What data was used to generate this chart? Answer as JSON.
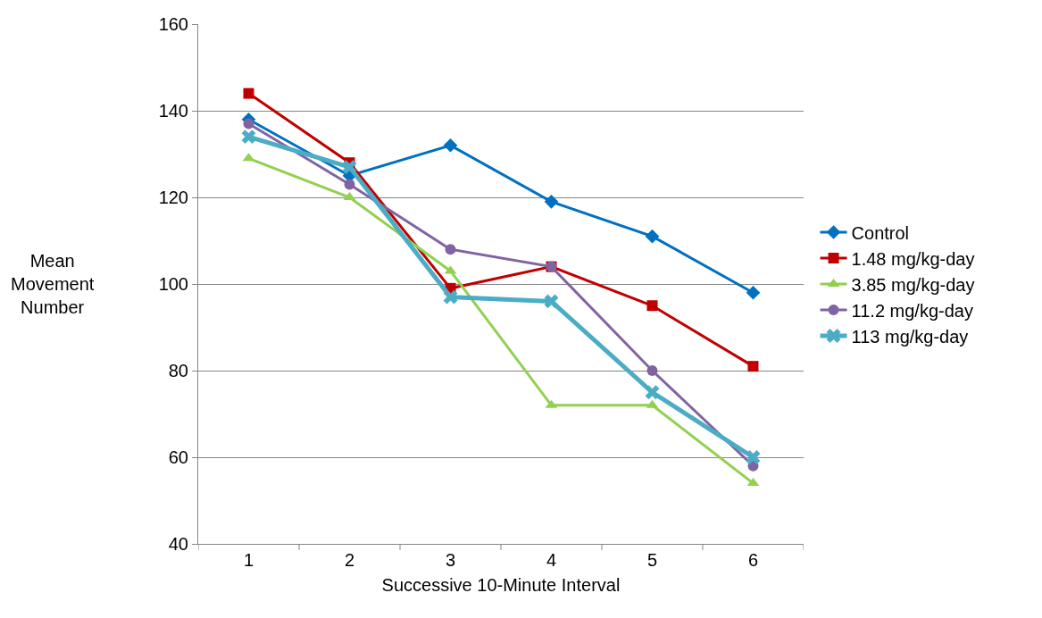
{
  "chart_data": {
    "type": "line",
    "xlabel": "Successive 10-Minute Interval",
    "ylabel": "Mean Movement Number",
    "categories": [
      "1",
      "2",
      "3",
      "4",
      "5",
      "6"
    ],
    "series": [
      {
        "name": "Control",
        "color": "#0070c0",
        "marker": "diamond",
        "values": [
          138,
          125,
          132,
          119,
          111,
          98
        ]
      },
      {
        "name": "1.48 mg/kg-day",
        "color": "#c00000",
        "marker": "square",
        "values": [
          144,
          128,
          99,
          104,
          95,
          81
        ]
      },
      {
        "name": "3.85 mg/kg-day",
        "color": "#92d050",
        "marker": "triangle",
        "values": [
          129,
          120,
          103,
          72,
          72,
          54
        ]
      },
      {
        "name": "11.2 mg/kg-day",
        "color": "#8064a2",
        "marker": "circle",
        "values": [
          137,
          123,
          108,
          104,
          80,
          58
        ]
      },
      {
        "name": "113 mg/kg-day",
        "color": "#4bacc6",
        "marker": "cross",
        "values": [
          134,
          127,
          97,
          96,
          75,
          60
        ]
      }
    ],
    "ylim": [
      40,
      160
    ],
    "yticks": [
      40,
      60,
      80,
      100,
      120,
      140,
      160
    ],
    "grid": "y",
    "legend": "right",
    "line_style": "solid"
  }
}
